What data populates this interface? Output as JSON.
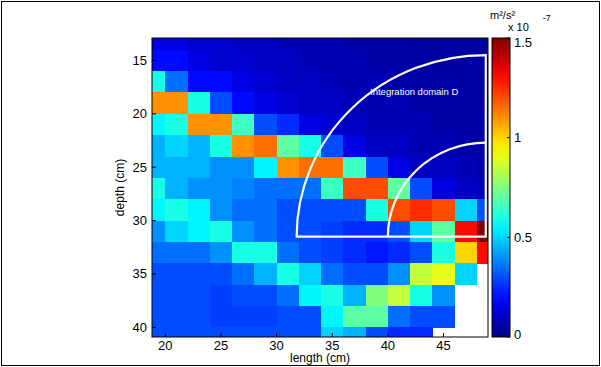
{
  "chart_data": {
    "type": "heatmap",
    "x_label": "length (cm)",
    "y_label": "depth (cm)",
    "xlim": [
      18.8,
      49
    ],
    "ylim": [
      12.9,
      40.9
    ],
    "xticks": [
      20,
      25,
      30,
      35,
      40,
      45
    ],
    "yticks": [
      15,
      20,
      25,
      30,
      35,
      40
    ],
    "x": [
      19,
      21,
      23,
      25,
      27,
      29,
      31,
      33,
      35,
      37,
      39,
      41,
      43,
      45,
      47,
      49
    ],
    "y": [
      13,
      15,
      17,
      19,
      21,
      23,
      25,
      27,
      29,
      31,
      33,
      35,
      37,
      39,
      41
    ],
    "cells": [
      [
        0.15,
        0.15,
        0.12,
        0.12,
        0.1,
        0.1,
        0.08,
        0.08,
        0.08,
        0.06,
        0.06,
        0.06,
        0.05,
        0.05,
        0.05,
        0.05
      ],
      [
        0.2,
        0.2,
        0.15,
        0.12,
        0.12,
        0.1,
        0.1,
        0.08,
        0.08,
        0.08,
        0.06,
        0.06,
        0.06,
        0.05,
        0.05,
        0.05
      ],
      [
        0.6,
        0.35,
        0.2,
        0.2,
        0.15,
        0.12,
        0.1,
        0.1,
        0.08,
        0.08,
        0.08,
        0.06,
        0.06,
        0.06,
        0.05,
        0.05
      ],
      [
        1.1,
        1.1,
        0.6,
        0.3,
        0.2,
        0.15,
        0.12,
        0.1,
        0.1,
        0.08,
        0.08,
        0.08,
        0.06,
        0.06,
        0.06,
        0.05
      ],
      [
        0.55,
        0.6,
        1.1,
        1.1,
        0.65,
        0.3,
        0.25,
        0.15,
        0.12,
        0.1,
        0.08,
        0.08,
        0.08,
        0.06,
        0.06,
        0.06
      ],
      [
        0.45,
        0.5,
        0.45,
        0.6,
        1.1,
        1.15,
        0.7,
        0.6,
        0.3,
        0.15,
        0.1,
        0.1,
        0.08,
        0.08,
        0.06,
        0.06
      ],
      [
        0.45,
        0.45,
        0.45,
        0.4,
        0.4,
        0.55,
        1.1,
        1.15,
        1.15,
        0.65,
        0.3,
        0.15,
        0.1,
        0.1,
        0.08,
        0.06
      ],
      [
        0.6,
        0.45,
        0.4,
        0.4,
        0.38,
        0.35,
        0.35,
        0.35,
        0.65,
        1.2,
        1.2,
        0.7,
        0.3,
        0.15,
        0.1,
        0.08
      ],
      [
        0.55,
        0.6,
        0.55,
        0.4,
        0.35,
        0.35,
        0.3,
        0.3,
        0.3,
        0.3,
        0.6,
        1.2,
        1.25,
        1.2,
        0.5,
        0.3
      ],
      [
        0.4,
        0.5,
        0.55,
        0.6,
        0.4,
        0.35,
        0.3,
        0.3,
        0.28,
        0.25,
        0.25,
        0.3,
        0.5,
        0.7,
        1.3,
        1.5
      ],
      [
        0.35,
        0.35,
        0.35,
        0.4,
        0.6,
        0.6,
        0.35,
        0.3,
        0.28,
        0.25,
        0.22,
        0.25,
        0.3,
        0.6,
        1.0,
        1.3
      ],
      [
        0.3,
        0.3,
        0.3,
        0.3,
        0.35,
        0.45,
        0.6,
        0.5,
        0.35,
        0.3,
        0.3,
        0.4,
        0.85,
        0.9,
        0.5,
        null
      ],
      [
        0.3,
        0.3,
        0.3,
        0.28,
        0.3,
        0.3,
        0.35,
        0.55,
        0.6,
        0.45,
        0.75,
        0.85,
        0.6,
        0.4,
        null,
        null
      ],
      [
        0.3,
        0.3,
        0.3,
        0.28,
        0.28,
        0.28,
        0.3,
        0.3,
        0.55,
        0.7,
        0.7,
        0.35,
        0.3,
        0.3,
        null,
        null
      ],
      [
        0.3,
        0.3,
        0.3,
        0.3,
        0.3,
        0.3,
        0.3,
        0.3,
        0.5,
        0.45,
        0.3,
        0.25,
        0.25,
        null,
        null,
        null
      ]
    ],
    "colorbar": {
      "label": "m²/s²",
      "multiplier": "x 10",
      "exponent": "-7",
      "range": [
        0,
        1.5
      ],
      "ticks": [
        0,
        0.5,
        1,
        1.5
      ]
    },
    "annotations": [
      {
        "text": "Integration domain D",
        "x": 38.4,
        "y": 18.2
      }
    ],
    "domain": {
      "center": [
        48.8,
        31.5
      ],
      "outer_radius": 17,
      "inner_radius": 8.8
    }
  }
}
